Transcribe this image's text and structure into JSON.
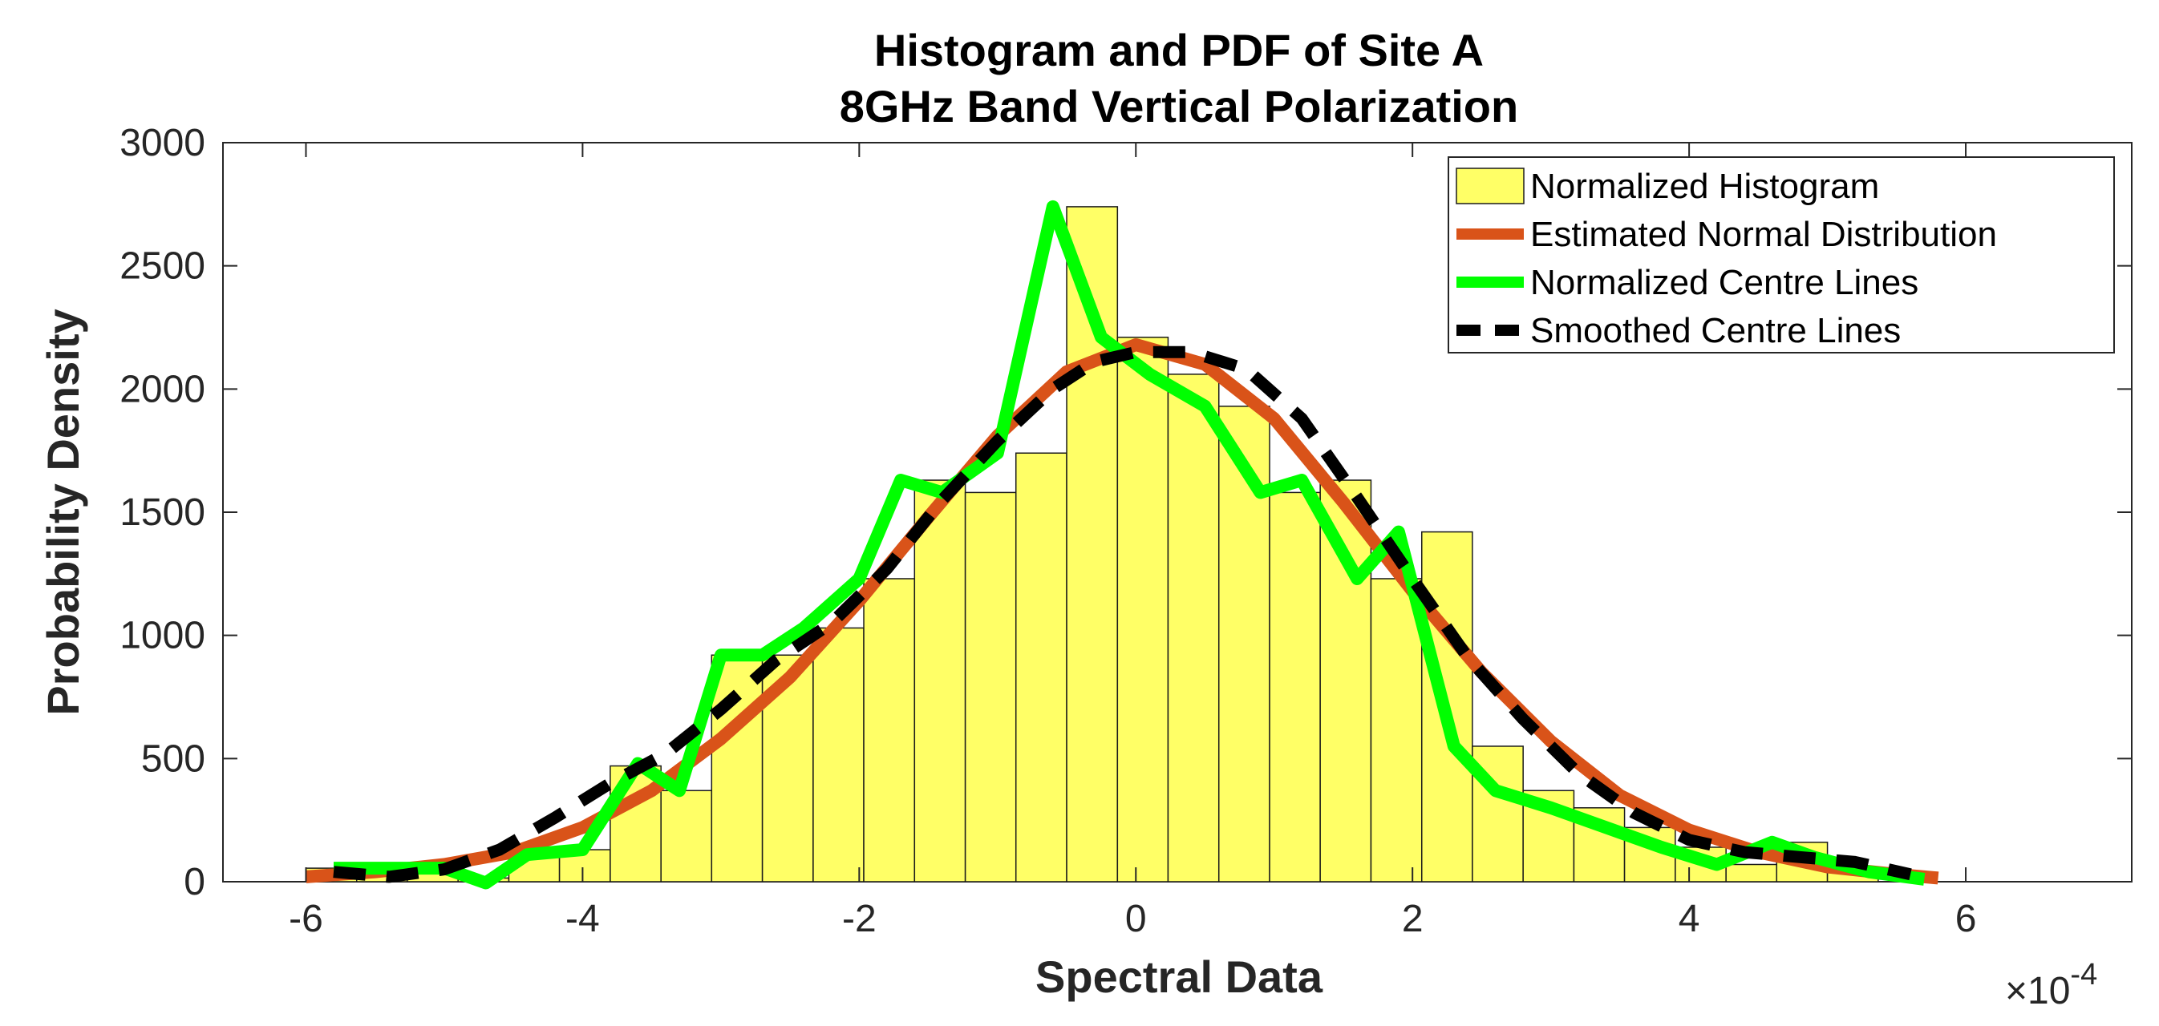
{
  "chart_data": {
    "type": "bar",
    "title_lines": [
      "Histogram and PDF of Site A",
      "8GHz Band Vertical Polarization"
    ],
    "xlabel": "Spectral Data",
    "ylabel": "Probability Density",
    "x_exponent_base": "×10",
    "x_exponent_power": "-4",
    "xlim": [
      -6.6,
      7.2
    ],
    "ylim": [
      0,
      3000
    ],
    "xticks": [
      -6,
      -4,
      -2,
      0,
      2,
      4,
      6
    ],
    "xtick_labels": [
      "-6",
      "-4",
      "-2",
      "0",
      "2",
      "4",
      "6"
    ],
    "yticks": [
      0,
      500,
      1000,
      1500,
      2000,
      2500,
      3000
    ],
    "ytick_labels": [
      "0",
      "500",
      "1000",
      "1500",
      "2000",
      "2500",
      "3000"
    ],
    "grid": false,
    "legend_placement": "top-right",
    "histogram": {
      "name": "Normalized Histogram",
      "bin_edges": [
        -6.0,
        -5.633,
        -5.267,
        -4.9,
        -4.533,
        -4.167,
        -3.8,
        -3.433,
        -3.067,
        -2.7,
        -2.333,
        -1.967,
        -1.6,
        -1.233,
        -0.867,
        -0.5,
        -0.133,
        0.233,
        0.6,
        0.967,
        1.333,
        1.7,
        2.067,
        2.433,
        2.8,
        3.167,
        3.533,
        3.9,
        4.267,
        4.633,
        5.0,
        5.367
      ],
      "values": [
        55,
        45,
        55,
        15,
        110,
        130,
        470,
        370,
        920,
        920,
        1030,
        1230,
        1630,
        1580,
        1740,
        2740,
        2210,
        2060,
        1930,
        1580,
        1630,
        1230,
        1420,
        550,
        370,
        300,
        220,
        140,
        70,
        160,
        60
      ]
    },
    "series": [
      {
        "name": "Estimated Normal Distribution",
        "color": "#D95319",
        "style": "solid",
        "x": [
          -6.0,
          -5.5,
          -5.0,
          -4.5,
          -4.0,
          -3.5,
          -3.0,
          -2.5,
          -2.0,
          -1.5,
          -1.0,
          -0.5,
          0.0,
          0.5,
          1.0,
          1.5,
          2.0,
          2.5,
          3.0,
          3.5,
          4.0,
          4.5,
          5.0,
          5.5,
          5.8
        ],
        "values": [
          20,
          40,
          70,
          120,
          220,
          370,
          580,
          830,
          1140,
          1480,
          1810,
          2070,
          2180,
          2100,
          1880,
          1540,
          1180,
          850,
          570,
          350,
          210,
          120,
          60,
          30,
          15
        ]
      },
      {
        "name": "Normalized Centre Lines",
        "color": "#00FF00",
        "style": "solid",
        "x": [
          -5.8,
          -5.4,
          -5.0,
          -4.7,
          -4.4,
          -4.0,
          -3.6,
          -3.3,
          -3.0,
          -2.7,
          -2.4,
          -2.0,
          -1.7,
          -1.4,
          -1.0,
          -0.6,
          -0.25,
          0.1,
          0.5,
          0.9,
          1.2,
          1.6,
          1.9,
          2.3,
          2.6,
          3.0,
          3.4,
          3.8,
          4.2,
          4.6,
          4.9,
          5.3,
          5.7
        ],
        "values": [
          55,
          55,
          55,
          -5,
          110,
          130,
          480,
          370,
          920,
          920,
          1030,
          1230,
          1630,
          1580,
          1740,
          2740,
          2210,
          2060,
          1930,
          1580,
          1630,
          1230,
          1420,
          550,
          370,
          300,
          220,
          140,
          70,
          160,
          100,
          40,
          10
        ]
      },
      {
        "name": "Smoothed Centre Lines",
        "color": "#000000",
        "style": "dashed",
        "x": [
          -5.8,
          -5.4,
          -5.0,
          -4.6,
          -4.2,
          -3.8,
          -3.4,
          -3.0,
          -2.6,
          -2.2,
          -1.8,
          -1.4,
          -1.0,
          -0.6,
          -0.3,
          0.0,
          0.4,
          0.8,
          1.2,
          1.6,
          2.0,
          2.4,
          2.8,
          3.2,
          3.6,
          4.0,
          4.4,
          4.8,
          5.2,
          5.6
        ],
        "values": [
          40,
          20,
          50,
          130,
          260,
          400,
          520,
          700,
          900,
          1050,
          1270,
          1550,
          1790,
          2000,
          2110,
          2150,
          2150,
          2080,
          1880,
          1560,
          1230,
          910,
          660,
          440,
          280,
          170,
          120,
          100,
          80,
          30
        ]
      }
    ]
  }
}
